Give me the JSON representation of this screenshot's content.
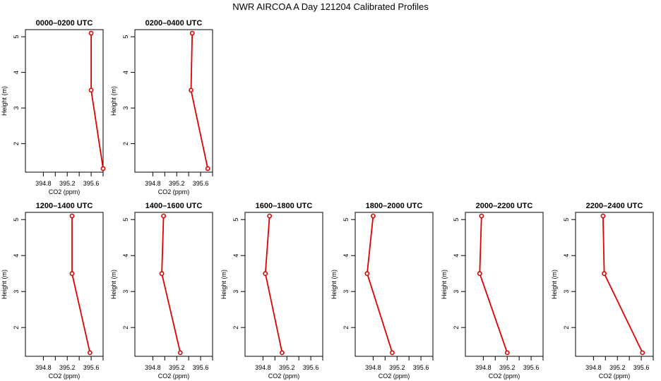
{
  "figure": {
    "title": "NWR AIRCOA A  Day 121204  Calibrated Profiles"
  },
  "chart_data": [
    {
      "type": "line",
      "title": "0000–0200 UTC",
      "xlabel": "CO2 (ppm)",
      "ylabel": "Height (m)",
      "xlim": [
        394.5,
        395.8
      ],
      "ylim": [
        1.2,
        5.2
      ],
      "xticks": [
        "394.8",
        "395.2",
        "395.6"
      ],
      "yticks": [
        "2",
        "3",
        "4",
        "5"
      ],
      "series": [
        {
          "x": [
            395.8,
            395.6,
            395.6
          ],
          "y": [
            1.3,
            3.5,
            5.1
          ],
          "color": "#e00000"
        }
      ]
    },
    {
      "type": "line",
      "title": "0200–0400 UTC",
      "xlabel": "CO2 (ppm)",
      "ylabel": "Height (m)",
      "xlim": [
        394.5,
        395.8
      ],
      "ylim": [
        1.2,
        5.2
      ],
      "xticks": [
        "394.8",
        "395.2",
        "395.6"
      ],
      "yticks": [
        "2",
        "3",
        "4",
        "5"
      ],
      "series": [
        {
          "x": [
            395.72,
            395.44,
            395.46
          ],
          "y": [
            1.3,
            3.5,
            5.1
          ],
          "color": "#e00000"
        }
      ]
    },
    {
      "type": "line",
      "title": "1200–1400 UTC",
      "xlabel": "CO2 (ppm)",
      "ylabel": "Height (m)",
      "xlim": [
        394.5,
        395.8
      ],
      "ylim": [
        1.2,
        5.2
      ],
      "xticks": [
        "394.8",
        "395.2",
        "395.6"
      ],
      "yticks": [
        "2",
        "3",
        "4",
        "5"
      ],
      "series": [
        {
          "x": [
            395.58,
            395.28,
            395.28
          ],
          "y": [
            1.3,
            3.5,
            5.1
          ],
          "color": "#e00000"
        }
      ]
    },
    {
      "type": "line",
      "title": "1400–1600 UTC",
      "xlabel": "CO2 (ppm)",
      "ylabel": "Height (m)",
      "xlim": [
        394.5,
        395.8
      ],
      "ylim": [
        1.2,
        5.2
      ],
      "xticks": [
        "394.8",
        "395.2",
        "395.6"
      ],
      "yticks": [
        "2",
        "3",
        "4",
        "5"
      ],
      "series": [
        {
          "x": [
            395.26,
            394.95,
            394.98
          ],
          "y": [
            1.3,
            3.5,
            5.1
          ],
          "color": "#e00000"
        }
      ]
    },
    {
      "type": "line",
      "title": "1600–1800 UTC",
      "xlabel": "CO2 (ppm)",
      "ylabel": "Height (m)",
      "xlim": [
        394.5,
        395.8
      ],
      "ylim": [
        1.2,
        5.2
      ],
      "xticks": [
        "394.8",
        "395.2",
        "395.6"
      ],
      "yticks": [
        "2",
        "3",
        "4",
        "5"
      ],
      "series": [
        {
          "x": [
            395.12,
            394.84,
            394.91
          ],
          "y": [
            1.3,
            3.5,
            5.1
          ],
          "color": "#e00000"
        }
      ]
    },
    {
      "type": "line",
      "title": "1800–2000 UTC",
      "xlabel": "CO2 (ppm)",
      "ylabel": "Height (m)",
      "xlim": [
        394.5,
        395.8
      ],
      "ylim": [
        1.2,
        5.2
      ],
      "xticks": [
        "394.8",
        "395.2",
        "395.6"
      ],
      "yticks": [
        "2",
        "3",
        "4",
        "5"
      ],
      "series": [
        {
          "x": [
            395.12,
            394.7,
            394.8
          ],
          "y": [
            1.3,
            3.5,
            5.1
          ],
          "color": "#e00000"
        }
      ]
    },
    {
      "type": "line",
      "title": "2000–2200 UTC",
      "xlabel": "CO2 (ppm)",
      "ylabel": "Height (m)",
      "xlim": [
        394.5,
        395.8
      ],
      "ylim": [
        1.2,
        5.2
      ],
      "xticks": [
        "394.8",
        "395.2",
        "395.6"
      ],
      "yticks": [
        "2",
        "3",
        "4",
        "5"
      ],
      "series": [
        {
          "x": [
            395.2,
            394.74,
            394.77
          ],
          "y": [
            1.3,
            3.5,
            5.1
          ],
          "color": "#e00000"
        }
      ]
    },
    {
      "type": "line",
      "title": "2200–2400 UTC",
      "xlabel": "CO2 (ppm)",
      "ylabel": "Height (m)",
      "xlim": [
        394.5,
        395.8
      ],
      "ylim": [
        1.2,
        5.2
      ],
      "xticks": [
        "394.8",
        "395.2",
        "395.6"
      ],
      "yticks": [
        "2",
        "3",
        "4",
        "5"
      ],
      "series": [
        {
          "x": [
            395.62,
            394.98,
            394.96
          ],
          "y": [
            1.3,
            3.5,
            5.1
          ],
          "color": "#e00000"
        }
      ]
    }
  ]
}
